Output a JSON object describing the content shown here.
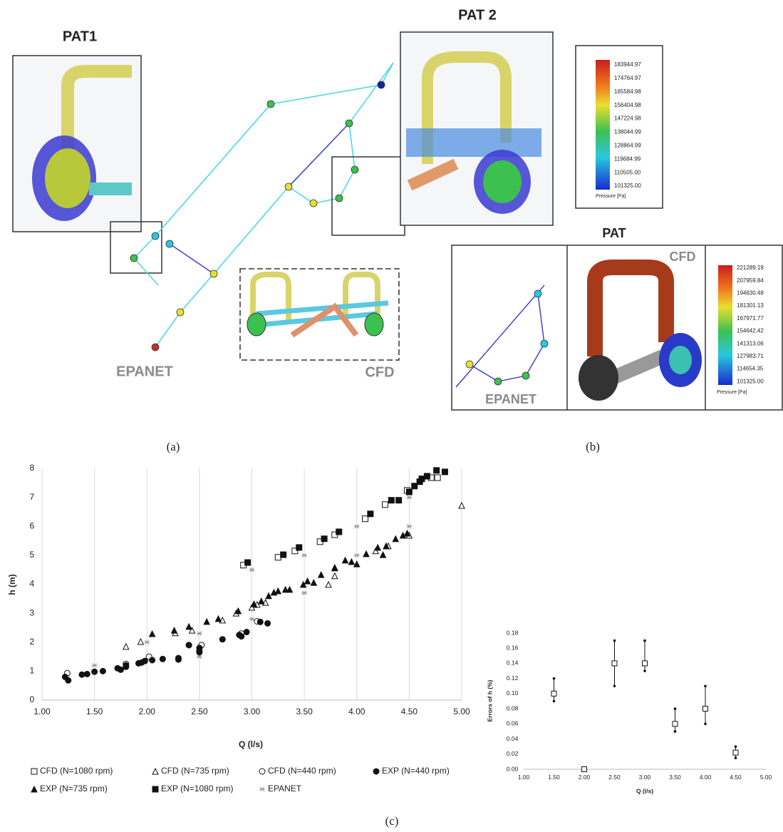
{
  "figure": {
    "panel_a": {
      "pat1": "PAT1",
      "pat2": "PAT 2",
      "epanet": "EPANET",
      "cfd": "CFD",
      "caption": "(a)",
      "colorbar": {
        "labels": [
          "183944.97",
          "174764.97",
          "165584.98",
          "156404.98",
          "147224.98",
          "138044.99",
          "128864.99",
          "119684.99",
          "110505.00",
          "101325.00"
        ],
        "title": "Pressure [Pa]"
      }
    },
    "panel_b": {
      "pat": "PAT",
      "cfd": "CFD",
      "epanet": "EPANET",
      "caption": "(b)",
      "colorbar": {
        "labels": [
          "221289.19",
          "207959.84",
          "194630.48",
          "181301.13",
          "167971.77",
          "154642.42",
          "141313.06",
          "127983.71",
          "114654.35",
          "101325.00"
        ],
        "title": "Pressure [Pa]"
      }
    },
    "panel_c_caption": "(c)"
  },
  "chart_data": [
    {
      "type": "scatter",
      "x_label": "Q (l/s)",
      "y_label": "h (m)",
      "xlim": [
        1,
        5
      ],
      "ylim": [
        0,
        8
      ],
      "xticks": [
        {
          "value": 1,
          "label": "1.00"
        },
        {
          "value": 1.5,
          "label": "1.50"
        },
        {
          "value": 2,
          "label": "2.00"
        },
        {
          "value": 2.5,
          "label": "2.50"
        },
        {
          "value": 3,
          "label": "3.00"
        },
        {
          "value": 3.5,
          "label": "3.50"
        },
        {
          "value": 4,
          "label": "4.00"
        },
        {
          "value": 4.5,
          "label": "4.50"
        },
        {
          "value": 5,
          "label": "5.00"
        }
      ],
      "yticks": [
        0,
        1,
        2,
        3,
        4,
        5,
        6,
        7,
        8
      ],
      "grid": "x",
      "legend": "bottom",
      "series": [
        {
          "name": "CFD (N=1080 rpm)",
          "marker": "square-open",
          "color": "#111111",
          "x": [
            2.92,
            3.25,
            3.41,
            3.65,
            3.79,
            4.08,
            4.27,
            4.48,
            4.71,
            4.77
          ],
          "values": [
            4.66,
            4.93,
            5.15,
            5.47,
            5.71,
            6.26,
            6.75,
            7.24,
            7.68,
            7.68
          ]
        },
        {
          "name": "CFD (N=735 rpm)",
          "marker": "triangle-open",
          "color": "#111111",
          "x": [
            1.8,
            1.94,
            2.27,
            2.43,
            2.72,
            2.85,
            3.0,
            3.05,
            3.13,
            3.73,
            3.79,
            3.79,
            4.18,
            4.3,
            4.5,
            5.0
          ],
          "values": [
            1.85,
            2.02,
            2.32,
            2.41,
            2.76,
            3.0,
            3.2,
            3.3,
            3.37,
            3.99,
            4.29,
            4.56,
            5.15,
            5.32,
            5.69,
            6.72
          ]
        },
        {
          "name": "CFD (N=440 rpm)",
          "marker": "circle-open",
          "color": "#111111",
          "x": [
            1.24,
            1.8,
            2.02,
            2.4,
            2.52,
            2.5,
            2.9,
            3.05
          ],
          "values": [
            0.93,
            1.25,
            1.5,
            1.9,
            1.9,
            1.7,
            2.3,
            2.72
          ]
        },
        {
          "name": "EXP (N=440 rpm)",
          "marker": "circle",
          "color": "#111111",
          "x": [
            1.22,
            1.25,
            1.38,
            1.43,
            1.5,
            1.58,
            1.72,
            1.75,
            1.8,
            1.8,
            1.92,
            1.95,
            1.98,
            2.05,
            2.15,
            2.3,
            2.3,
            2.4,
            2.5,
            2.5,
            2.72,
            2.88,
            2.9,
            2.95,
            3.08,
            3.15
          ],
          "values": [
            0.8,
            0.68,
            0.88,
            0.9,
            0.98,
            1.0,
            1.1,
            1.05,
            1.15,
            1.2,
            1.27,
            1.3,
            1.35,
            1.38,
            1.42,
            1.45,
            1.4,
            1.9,
            1.8,
            1.65,
            2.1,
            2.25,
            2.2,
            2.35,
            2.7,
            2.65
          ]
        },
        {
          "name": "EXP (N=735 rpm)",
          "marker": "triangle",
          "color": "#111111",
          "x": [
            2.05,
            2.26,
            2.4,
            2.57,
            2.68,
            2.87,
            3.02,
            3.09,
            3.16,
            3.21,
            3.25,
            3.32,
            3.36,
            3.49,
            3.53,
            3.59,
            3.66,
            3.79,
            3.89,
            3.95,
            4.0,
            4.09,
            4.2,
            4.25,
            4.28,
            4.37,
            4.44,
            4.48
          ],
          "values": [
            2.29,
            2.41,
            2.54,
            2.71,
            2.81,
            3.08,
            3.32,
            3.42,
            3.6,
            3.72,
            3.77,
            3.82,
            3.82,
            3.99,
            4.11,
            4.06,
            4.33,
            4.58,
            4.83,
            4.78,
            4.7,
            5.05,
            5.27,
            5.02,
            5.32,
            5.57,
            5.69,
            5.76
          ]
        },
        {
          "name": "EXP (N=1080 rpm)",
          "marker": "square",
          "color": "#111111",
          "x": [
            2.96,
            3.3,
            3.45,
            3.69,
            3.83,
            4.13,
            4.33,
            4.4,
            4.5,
            4.55,
            4.6,
            4.62,
            4.67,
            4.76,
            4.84
          ],
          "values": [
            4.75,
            5.02,
            5.27,
            5.57,
            5.81,
            6.43,
            6.9,
            6.9,
            7.19,
            7.39,
            7.54,
            7.64,
            7.73,
            7.93,
            7.88
          ]
        },
        {
          "name": "EPANET",
          "marker": "asterisk",
          "color": "#8c8c8c",
          "x": [
            1.5,
            2.0,
            2.5,
            2.5,
            3.0,
            3.0,
            3.5,
            3.5,
            4.0,
            4.0,
            4.5,
            4.5
          ],
          "values": [
            1.2,
            2.0,
            2.3,
            1.5,
            4.5,
            2.8,
            5.0,
            3.7,
            6.0,
            5.0,
            7.0,
            6.0
          ]
        }
      ]
    },
    {
      "type": "scatter",
      "x_label": "Q (l/s)",
      "y_label": "Errors of h (%)",
      "xlim": [
        1,
        5
      ],
      "ylim": [
        0,
        0.18
      ],
      "xticks": [
        {
          "value": 1,
          "label": "1.00"
        },
        {
          "value": 1.5,
          "label": "1.50"
        },
        {
          "value": 2,
          "label": "2.00"
        },
        {
          "value": 2.5,
          "label": "2.50"
        },
        {
          "value": 3,
          "label": "3.00"
        },
        {
          "value": 3.5,
          "label": "3.50"
        },
        {
          "value": 4,
          "label": "4.00"
        },
        {
          "value": 4.5,
          "label": "4.50"
        },
        {
          "value": 5,
          "label": "5.00"
        }
      ],
      "yticks": [
        {
          "value": 0,
          "label": "0.00"
        },
        {
          "value": 0.02,
          "label": "0.02"
        },
        {
          "value": 0.04,
          "label": "0.04"
        },
        {
          "value": 0.06,
          "label": "0.06"
        },
        {
          "value": 0.08,
          "label": "0.08"
        },
        {
          "value": 0.1,
          "label": "0.10"
        },
        {
          "value": 0.12,
          "label": "0.12"
        },
        {
          "value": 0.14,
          "label": "0.14"
        },
        {
          "value": 0.16,
          "label": "0.16"
        },
        {
          "value": 0.18,
          "label": "0.18"
        }
      ],
      "grid": false,
      "series": [
        {
          "marker": "square-open",
          "color": "#111111",
          "x": [
            1.5,
            2.0,
            2.5,
            3.0,
            3.5,
            4.0,
            4.5
          ],
          "values": [
            0.1,
            0.0,
            0.14,
            0.14,
            0.06,
            0.08,
            0.022
          ],
          "error_low": [
            0.09,
            null,
            0.11,
            0.13,
            0.05,
            0.06,
            0.015
          ],
          "error_high": [
            0.12,
            null,
            0.17,
            0.17,
            0.08,
            0.11,
            0.03
          ]
        }
      ]
    }
  ]
}
